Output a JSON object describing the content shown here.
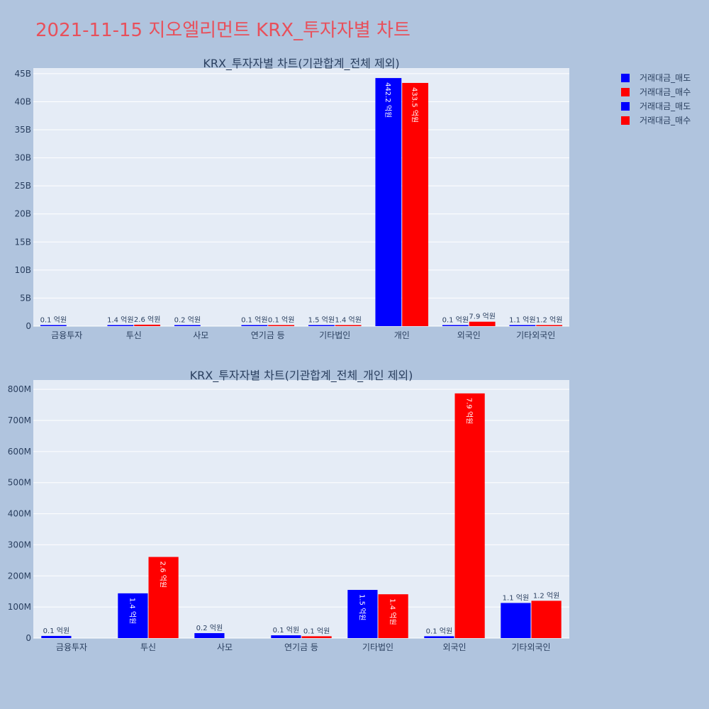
{
  "title": "2021-11-15 지오엘리먼트 KRX_투자자별 차트",
  "legend": [
    {
      "name": "거래대금_매도",
      "color": "#0000ff"
    },
    {
      "name": "거래대금_매수",
      "color": "#ff0000"
    },
    {
      "name": "거래대금_매도",
      "color": "#0000ff"
    },
    {
      "name": "거래대금_매수",
      "color": "#ff0000"
    }
  ],
  "chart_data": [
    {
      "type": "bar",
      "title": "KRX_투자자별 차트(기관합계_전체 제외)",
      "categories": [
        "금융투자",
        "투신",
        "사모",
        "연기금 등",
        "기타법인",
        "개인",
        "외국인",
        "기타외국인"
      ],
      "ylim": [
        0,
        46000000000
      ],
      "yticks": [
        0,
        5000000000,
        10000000000,
        15000000000,
        20000000000,
        25000000000,
        30000000000,
        35000000000,
        40000000000,
        45000000000
      ],
      "ytick_labels": [
        "0",
        "5B",
        "10B",
        "15B",
        "20B",
        "25B",
        "30B",
        "35B",
        "40B",
        "45B"
      ],
      "grid": true,
      "series": [
        {
          "name": "거래대금_매도",
          "color": "#0000ff",
          "values": [
            10000000,
            140000000,
            20000000,
            10000000,
            150000000,
            44220000000,
            10000000,
            110000000
          ],
          "labels": [
            "0.1 억원",
            "1.4 억원",
            "0.2 억원",
            "0.1 억원",
            "1.5 억원",
            "442.2 억원",
            "0.1 억원",
            "1.1 억원"
          ]
        },
        {
          "name": "거래대금_매수",
          "color": "#ff0000",
          "values": [
            null,
            260000000,
            null,
            10000000,
            140000000,
            43350000000,
            790000000,
            120000000
          ],
          "labels": [
            "",
            "2.6 억원",
            "",
            "0.1 억원",
            "1.4 억원",
            "433.5 억원",
            "7.9 억원",
            "1.2 억원"
          ]
        }
      ]
    },
    {
      "type": "bar",
      "title": "KRX_투자자별 차트(기관합계_전체_개인 제외)",
      "categories": [
        "금융투자",
        "투신",
        "사모",
        "연기금 등",
        "기타법인",
        "외국인",
        "기타외국인"
      ],
      "ylim": [
        0,
        830000000
      ],
      "yticks": [
        0,
        100000000,
        200000000,
        300000000,
        400000000,
        500000000,
        600000000,
        700000000,
        800000000
      ],
      "ytick_labels": [
        "0",
        "100M",
        "200M",
        "300M",
        "400M",
        "500M",
        "600M",
        "700M",
        "800M"
      ],
      "grid": true,
      "series": [
        {
          "name": "거래대금_매도",
          "color": "#0000ff",
          "values": [
            7000000,
            144000000,
            16000000,
            9000000,
            155000000,
            6000000,
            113000000
          ],
          "labels": [
            "0.1 억원",
            "1.4 억원",
            "0.2 억원",
            "0.1 억원",
            "1.5 억원",
            "0.1 억원",
            "1.1 억원"
          ]
        },
        {
          "name": "거래대금_매수",
          "color": "#ff0000",
          "values": [
            null,
            261000000,
            null,
            6000000,
            141000000,
            787000000,
            120000000
          ],
          "labels": [
            "",
            "2.6 억원",
            "",
            "0.1 억원",
            "1.4 억원",
            "7.9 억원",
            "1.2 억원"
          ]
        }
      ]
    }
  ]
}
